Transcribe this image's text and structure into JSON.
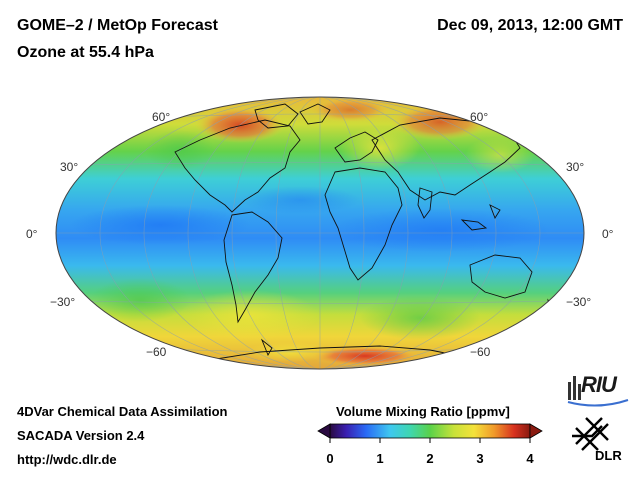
{
  "header": {
    "title_line1": "GOME–2 / MetOp Forecast",
    "title_line2": "Ozone at 55.4 hPa",
    "datetime": "Dec 09, 2013, 12:00 GMT"
  },
  "footer": {
    "line1": "4DVar Chemical Data Assimilation",
    "line2": "SACADA Version 2.4",
    "line3": "http://wdc.dlr.de"
  },
  "map": {
    "projection": "Hammer-Aitoff",
    "latitude_labels_left": [
      "60°",
      "30°",
      "0°",
      "−30°",
      "−60"
    ],
    "latitude_labels_right": [
      "60°",
      "30°",
      "0°",
      "−30°",
      "−60"
    ]
  },
  "colorbar": {
    "title": "Volume Mixing Ratio [ppmv]",
    "ticks": [
      "0",
      "1",
      "2",
      "3",
      "4"
    ],
    "min": 0,
    "max": 4
  },
  "logos": {
    "riu": "RIU",
    "dlr": "DLR"
  },
  "colors": {
    "low": "#1e6fff",
    "mid": "#3fd2e0",
    "green": "#5fd14a",
    "yellow": "#f2e43a",
    "high": "#d9261c"
  }
}
